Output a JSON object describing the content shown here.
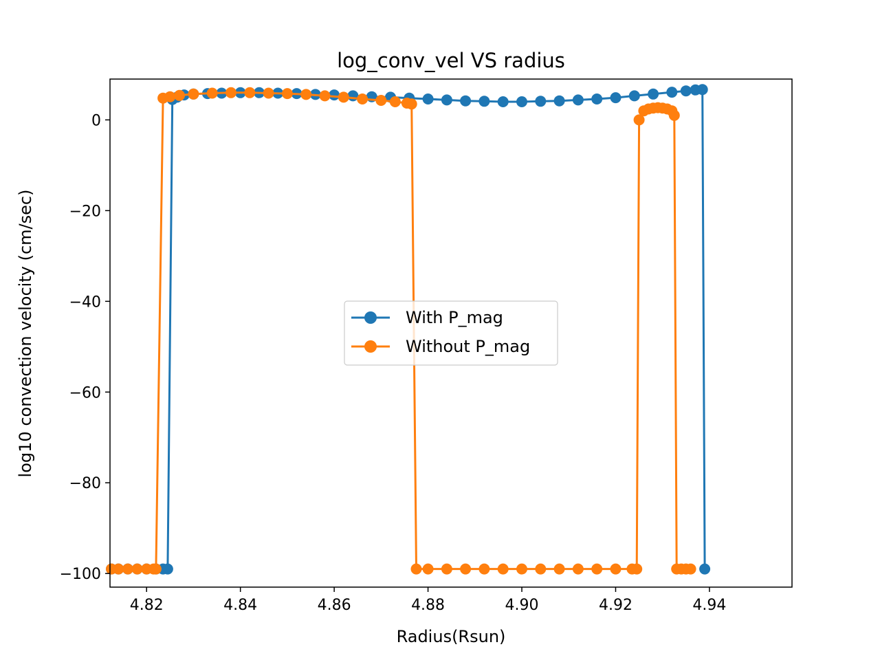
{
  "chart_data": {
    "type": "line",
    "title": "log_conv_vel VS radius",
    "xlabel": "Radius(Rsun)",
    "ylabel": "log10 convection velocity (cm/sec)",
    "xlim": [
      4.8122,
      4.9576
    ],
    "ylim": [
      -103,
      9
    ],
    "x_ticks": [
      4.82,
      4.84,
      4.86,
      4.88,
      4.9,
      4.92,
      4.94
    ],
    "x_tick_labels": [
      "4.82",
      "4.84",
      "4.86",
      "4.88",
      "4.90",
      "4.92",
      "4.94"
    ],
    "y_ticks": [
      0,
      -20,
      -40,
      -60,
      -80,
      -100
    ],
    "y_tick_labels": [
      "0",
      "−20",
      "−40",
      "−60",
      "−80",
      "−100"
    ],
    "grid": false,
    "legend_position": "center",
    "series": [
      {
        "name": "With P_mag",
        "color": "#1f77b4",
        "x": [
          4.8125,
          4.814,
          4.816,
          4.818,
          4.82,
          4.822,
          4.8235,
          4.8245,
          4.8255,
          4.8265,
          4.828,
          4.83,
          4.833,
          4.836,
          4.84,
          4.844,
          4.848,
          4.852,
          4.856,
          4.86,
          4.864,
          4.868,
          4.872,
          4.876,
          4.88,
          4.884,
          4.888,
          4.892,
          4.896,
          4.9,
          4.904,
          4.908,
          4.912,
          4.916,
          4.92,
          4.924,
          4.928,
          4.932,
          4.935,
          4.937,
          4.9385,
          4.939
        ],
        "y": [
          -99,
          -99,
          -99,
          -99,
          -99,
          -99,
          -99,
          -99,
          4.5,
          5.0,
          5.5,
          5.7,
          5.8,
          5.9,
          6.0,
          6.0,
          5.9,
          5.8,
          5.6,
          5.5,
          5.3,
          5.1,
          5.0,
          4.8,
          4.6,
          4.4,
          4.2,
          4.1,
          4.0,
          4.0,
          4.1,
          4.2,
          4.4,
          4.6,
          4.9,
          5.3,
          5.7,
          6.1,
          6.4,
          6.6,
          6.7,
          -99
        ]
      },
      {
        "name": "Without P_mag",
        "color": "#ff7f0e",
        "x": [
          4.8125,
          4.814,
          4.816,
          4.818,
          4.82,
          4.8215,
          4.822,
          4.8235,
          4.825,
          4.827,
          4.83,
          4.834,
          4.838,
          4.842,
          4.846,
          4.85,
          4.854,
          4.858,
          4.862,
          4.866,
          4.87,
          4.873,
          4.8755,
          4.8765,
          4.8775,
          4.88,
          4.884,
          4.888,
          4.892,
          4.896,
          4.9,
          4.904,
          4.908,
          4.912,
          4.916,
          4.92,
          4.9235,
          4.9245,
          4.925,
          4.926,
          4.927,
          4.928,
          4.929,
          4.93,
          4.931,
          4.932,
          4.9325,
          4.933,
          4.934,
          4.935,
          4.936
        ],
        "y": [
          -99,
          -99,
          -99,
          -99,
          -99,
          -99,
          -99,
          4.8,
          5.1,
          5.4,
          5.7,
          5.9,
          6.0,
          6.0,
          5.9,
          5.8,
          5.6,
          5.3,
          5.0,
          4.6,
          4.3,
          4.0,
          3.7,
          3.5,
          -99,
          -99,
          -99,
          -99,
          -99,
          -99,
          -99,
          -99,
          -99,
          -99,
          -99,
          -99,
          -99,
          -99,
          0.0,
          2.0,
          2.4,
          2.6,
          2.7,
          2.6,
          2.4,
          2.0,
          1.0,
          -99,
          -99,
          -99,
          -99
        ]
      }
    ]
  }
}
